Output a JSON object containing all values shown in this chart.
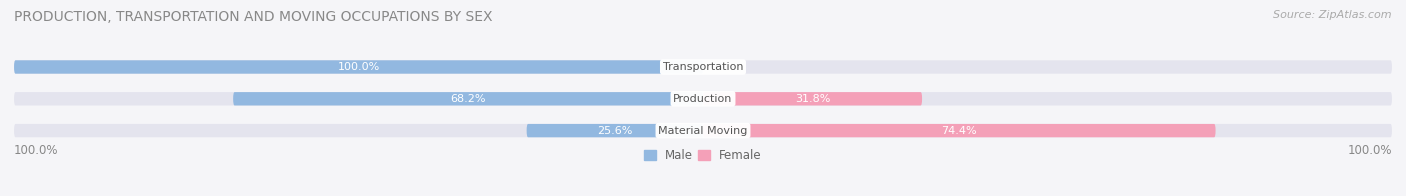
{
  "title": "PRODUCTION, TRANSPORTATION AND MOVING OCCUPATIONS BY SEX",
  "source": "Source: ZipAtlas.com",
  "categories": [
    "Transportation",
    "Production",
    "Material Moving"
  ],
  "male_values": [
    100.0,
    68.2,
    25.6
  ],
  "female_values": [
    0.0,
    31.8,
    74.4
  ],
  "male_color": "#92b8e0",
  "female_color": "#f4a0b8",
  "bar_bg_color": "#e4e4ee",
  "fig_bg_color": "#f5f5f8",
  "title_color": "#888888",
  "label_color_inside": "white",
  "label_color_outside": "#888888",
  "axis_label_color": "#888888",
  "category_color": "#555555",
  "source_color": "#aaaaaa",
  "title_fontsize": 10,
  "source_fontsize": 8,
  "label_fontsize": 8,
  "category_fontsize": 8,
  "legend_fontsize": 8.5,
  "axis_label_fontsize": 8.5,
  "left_label": "100.0%",
  "right_label": "100.0%"
}
